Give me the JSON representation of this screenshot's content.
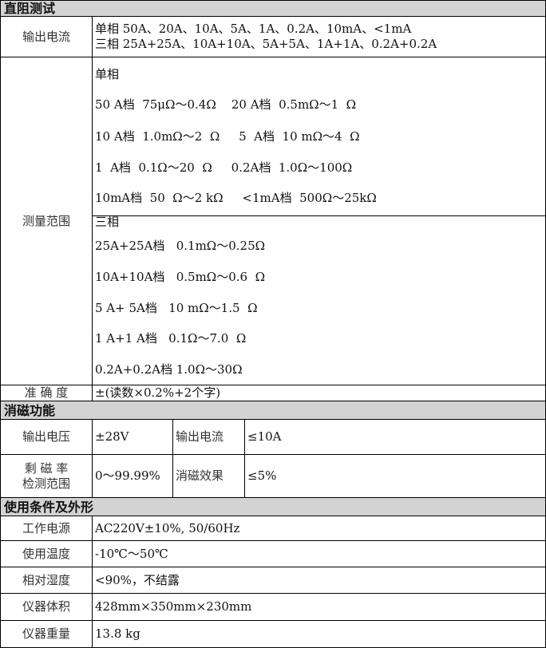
{
  "sections": [
    {
      "title": "直阻测试"
    },
    {
      "title": "消磁功能"
    },
    {
      "title": "使用条件及外形"
    }
  ],
  "dc": {
    "output_current": {
      "label": "输出电流",
      "lines": [
        "单相 50A、20A、10A、5A、1A、0.2A、10mA、<1mA",
        "三相 25A+25A、10A+10A、5A+5A、1A+1A、0.2A+0.2A"
      ]
    },
    "range": {
      "label": "测量范围",
      "single_title": "单相",
      "single": [
        "50 A档  75μΩ～0.4Ω    20 A档  0.5mΩ～1  Ω",
        "10 A档  1.0mΩ～2  Ω     5  A档  10 mΩ～4  Ω",
        "1  A档  0.1Ω～20  Ω     0.2A档  1.0Ω～100Ω",
        "10mA档  50  Ω～2 kΩ     <1mA档  500Ω～25kΩ"
      ],
      "three_title": "三相",
      "three": [
        "25A+25A档   0.1mΩ～0.25Ω",
        "10A+10A档   0.5mΩ～0.6  Ω",
        "5 A+ 5A档   10 mΩ～1.5  Ω",
        "1 A+1 A档   0.1Ω～7.0  Ω",
        "0.2A+0.2A档 1.0Ω～30Ω"
      ]
    },
    "accuracy": {
      "label": "准 确 度",
      "value": "±(读数×0.2%+2个字)"
    }
  },
  "demag": {
    "voltage": {
      "label": "输出电压",
      "value": "±28V"
    },
    "current": {
      "label": "输出电流",
      "value": "≤10A"
    },
    "remanence": {
      "label1": "剩 磁 率",
      "label2": "检测范围",
      "value": "0～99.99%"
    },
    "effect": {
      "label": "消磁效果",
      "value": "≤5%"
    }
  },
  "conditions": [
    {
      "label": "工作电源",
      "value": "AC220V±10%, 50/60Hz"
    },
    {
      "label": "使用温度",
      "value": "-10℃～50℃"
    },
    {
      "label": "相对湿度",
      "value": "<90%，不结露"
    },
    {
      "label": "仪器体积",
      "value": "428mm×350mm×230mm"
    },
    {
      "label": "仪器重量",
      "value": "13.8 kg"
    }
  ]
}
